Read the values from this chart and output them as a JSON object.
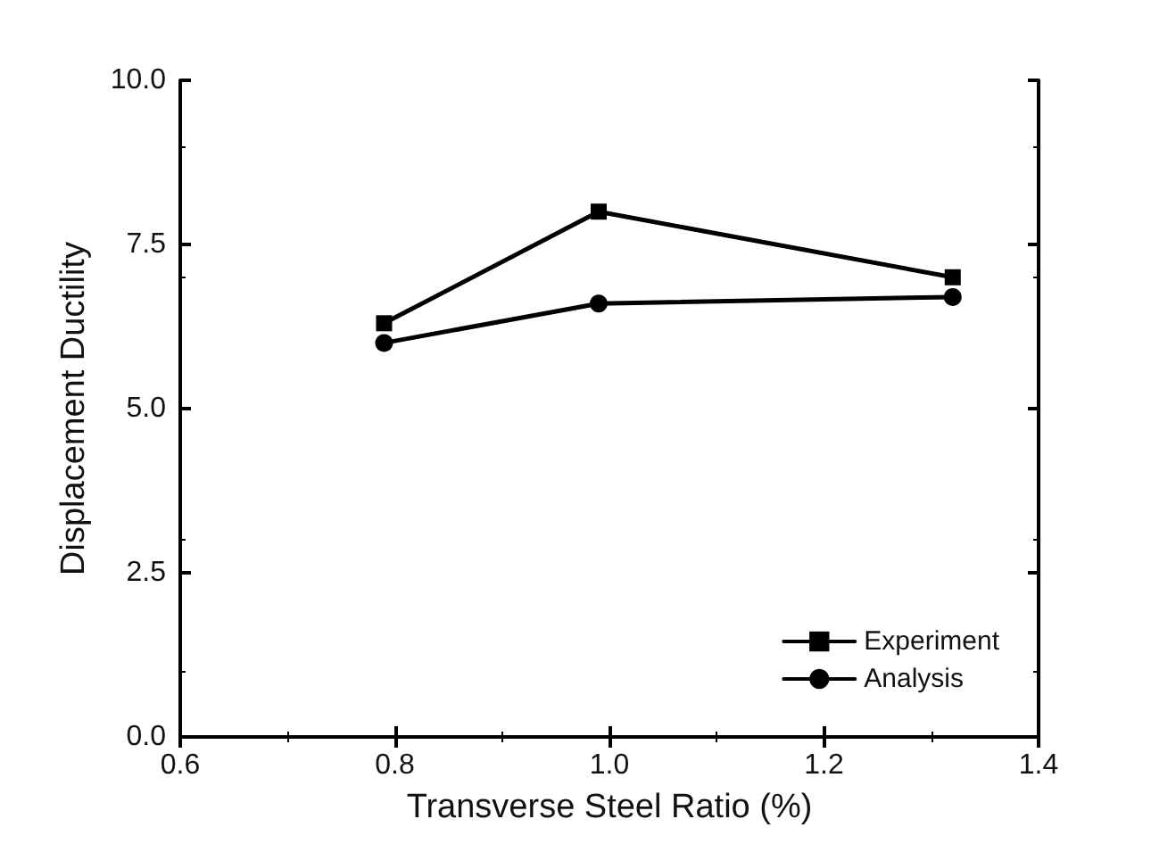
{
  "chart_data": {
    "type": "line",
    "xlabel": "Transverse Steel Ratio (%)",
    "ylabel": "Displacement Ductility",
    "x": [
      0.79,
      0.99,
      1.32
    ],
    "series": [
      {
        "name": "Experiment",
        "color": "#000000",
        "marker": "square",
        "values": [
          6.3,
          8.0,
          7.0
        ]
      },
      {
        "name": "Analysis",
        "color": "#000000",
        "marker": "circle",
        "values": [
          6.0,
          6.6,
          6.7
        ]
      }
    ],
    "xlim": [
      0.6,
      1.4
    ],
    "xticks": [
      {
        "value": 0.6,
        "label": "0.6"
      },
      {
        "value": 0.8,
        "label": "0.8"
      },
      {
        "value": 1.0,
        "label": "1.0"
      },
      {
        "value": 1.2,
        "label": "1.2"
      },
      {
        "value": 1.4,
        "label": "1.4"
      }
    ],
    "ylim": [
      0,
      10
    ],
    "yticks": [
      {
        "value": 0,
        "label": "0.0"
      },
      {
        "value": 2.5,
        "label": "2.5"
      },
      {
        "value": 5,
        "label": "5.0"
      },
      {
        "value": 7.5,
        "label": "7.5"
      },
      {
        "value": 10,
        "label": "10.0"
      }
    ],
    "grid": false,
    "legend": "bottom right",
    "line_style": "solid"
  }
}
